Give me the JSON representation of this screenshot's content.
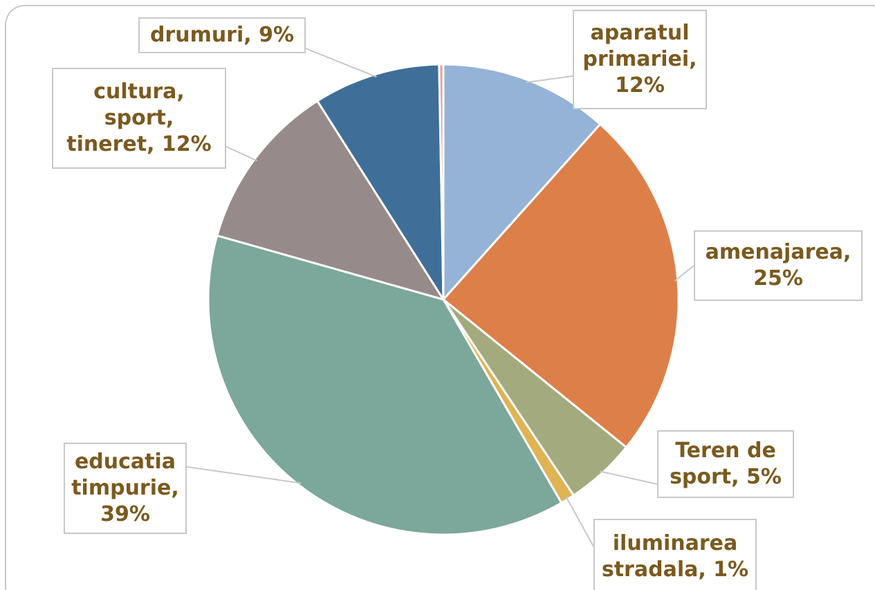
{
  "chart_data": {
    "type": "pie",
    "values": [
      12,
      25,
      5,
      1,
      39,
      12,
      9,
      0.3
    ],
    "value_labels": [
      "aparatul primariei, 12%",
      "amenajarea, 25%",
      "Teren de sport, 5%",
      "iluminarea stradala, 1%",
      "educatia timpurie, 39%",
      "cultura, sport, tineret, 12%",
      "drumuri, 9%",
      null
    ],
    "colors": [
      "#95b3d7",
      "#dd7f48",
      "#a3aa7e",
      "#e0b354",
      "#7ca79b",
      "#968b8a",
      "#3f6f98",
      "#e8a090"
    ]
  }
}
